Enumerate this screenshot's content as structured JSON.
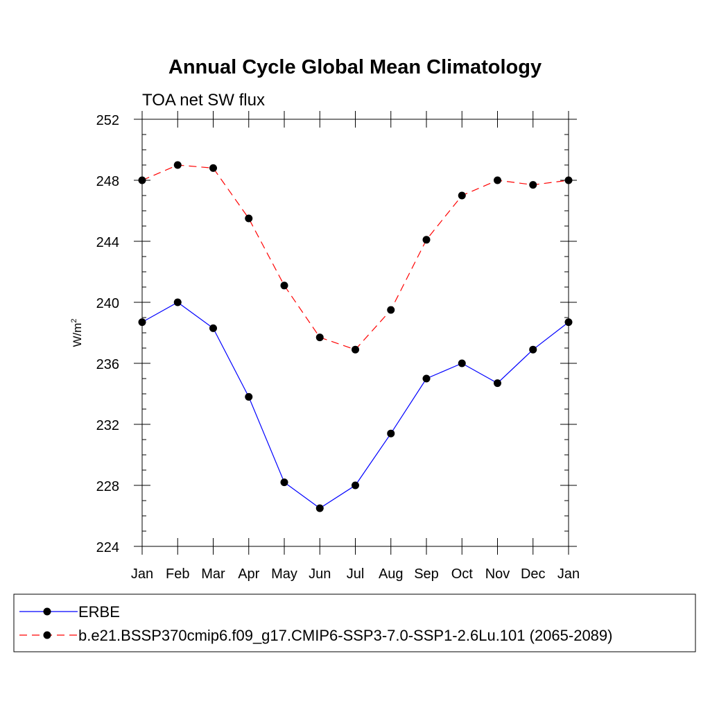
{
  "chart_data": {
    "type": "line",
    "title": "Annual Cycle Global Mean Climatology",
    "subtitle": "TOA net SW flux",
    "ylabel": "W/m",
    "ylabel_sup": "2",
    "xlabel": "",
    "categories": [
      "Jan",
      "Feb",
      "Mar",
      "Apr",
      "May",
      "Jun",
      "Jul",
      "Aug",
      "Sep",
      "Oct",
      "Nov",
      "Dec",
      "Jan"
    ],
    "ylim": [
      224,
      252
    ],
    "yticks": [
      224,
      228,
      232,
      236,
      240,
      244,
      248,
      252
    ],
    "yminor_step": 1,
    "grid": false,
    "legend_position": "bottom",
    "series": [
      {
        "name": "ERBE",
        "color": "#0000ff",
        "dash": "solid",
        "values": [
          238.7,
          240.0,
          238.3,
          233.8,
          228.2,
          226.5,
          228.0,
          231.4,
          235.0,
          236.0,
          234.7,
          236.9,
          238.7
        ]
      },
      {
        "name": "b.e21.BSSP370cmip6.f09_g17.CMIP6-SSP3-7.0-SSP1-2.6Lu.101 (2065-2089)",
        "color": "#ff0000",
        "dash": "dashed",
        "values": [
          248.0,
          249.0,
          248.8,
          245.5,
          241.1,
          237.7,
          236.9,
          239.5,
          244.1,
          247.0,
          248.0,
          247.7,
          248.0
        ]
      }
    ]
  }
}
